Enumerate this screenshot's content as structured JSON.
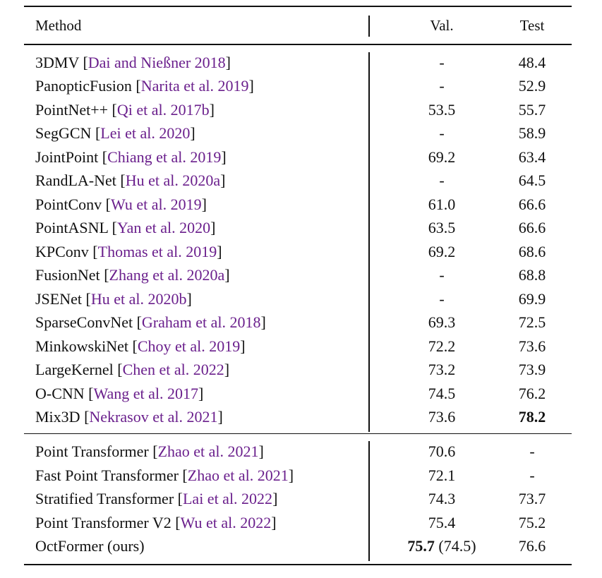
{
  "header": {
    "method": "Method",
    "val": "Val.",
    "test": "Test"
  },
  "group1": [
    {
      "name": "3DMV",
      "cite": "Dai and Nießner 2018",
      "val": "-",
      "test": "48.4"
    },
    {
      "name": "PanopticFusion",
      "cite": "Narita et al. 2019",
      "val": "-",
      "test": "52.9"
    },
    {
      "name": "PointNet++",
      "cite": "Qi et al. 2017b",
      "val": "53.5",
      "test": "55.7"
    },
    {
      "name": "SegGCN",
      "cite": "Lei et al. 2020",
      "val": "-",
      "test": "58.9"
    },
    {
      "name": "JointPoint",
      "cite": "Chiang et al. 2019",
      "val": "69.2",
      "test": "63.4"
    },
    {
      "name": "RandLA-Net",
      "cite": "Hu et al. 2020a",
      "val": "-",
      "test": "64.5"
    },
    {
      "name": "PointConv",
      "cite": "Wu et al. 2019",
      "val": "61.0",
      "test": "66.6"
    },
    {
      "name": "PointASNL",
      "cite": "Yan et al. 2020",
      "val": "63.5",
      "test": "66.6"
    },
    {
      "name": "KPConv",
      "cite": "Thomas et al. 2019",
      "val": "69.2",
      "test": "68.6"
    },
    {
      "name": "FusionNet",
      "cite": "Zhang et al. 2020a",
      "val": "-",
      "test": "68.8"
    },
    {
      "name": "JSENet",
      "cite": "Hu et al. 2020b",
      "val": "-",
      "test": "69.9"
    },
    {
      "name": "SparseConvNet",
      "cite": "Graham et al. 2018",
      "val": "69.3",
      "test": "72.5"
    },
    {
      "name": "MinkowskiNet",
      "cite": "Choy et al. 2019",
      "val": "72.2",
      "test": "73.6"
    },
    {
      "name": "LargeKernel",
      "cite": "Chen et al. 2022",
      "val": "73.2",
      "test": "73.9"
    },
    {
      "name": "O-CNN",
      "cite": "Wang et al. 2017",
      "val": "74.5",
      "test": "76.2"
    },
    {
      "name": "Mix3D",
      "cite": "Nekrasov et al. 2021",
      "val": "73.6",
      "test": "78.2",
      "test_bold": true
    }
  ],
  "group2": [
    {
      "name": "Point Transformer",
      "cite": "Zhao et al. 2021",
      "val": "70.6",
      "test": "-"
    },
    {
      "name": "Fast Point Transformer",
      "cite": "Zhao et al. 2021",
      "val": "72.1",
      "test": "-"
    },
    {
      "name": "Stratified Transformer",
      "cite": "Lai et al. 2022",
      "val": "74.3",
      "test": "73.7"
    },
    {
      "name": "Point Transformer V2",
      "cite": "Wu et al. 2022",
      "val": "75.4",
      "test": "75.2"
    },
    {
      "name": "OctFormer (ours)",
      "cite": "",
      "val": "75.7",
      "val_extra": "(74.5)",
      "val_bold": true,
      "test": "76.6"
    }
  ],
  "colors": {
    "citation": "#6a1f8c",
    "text": "#111111"
  }
}
